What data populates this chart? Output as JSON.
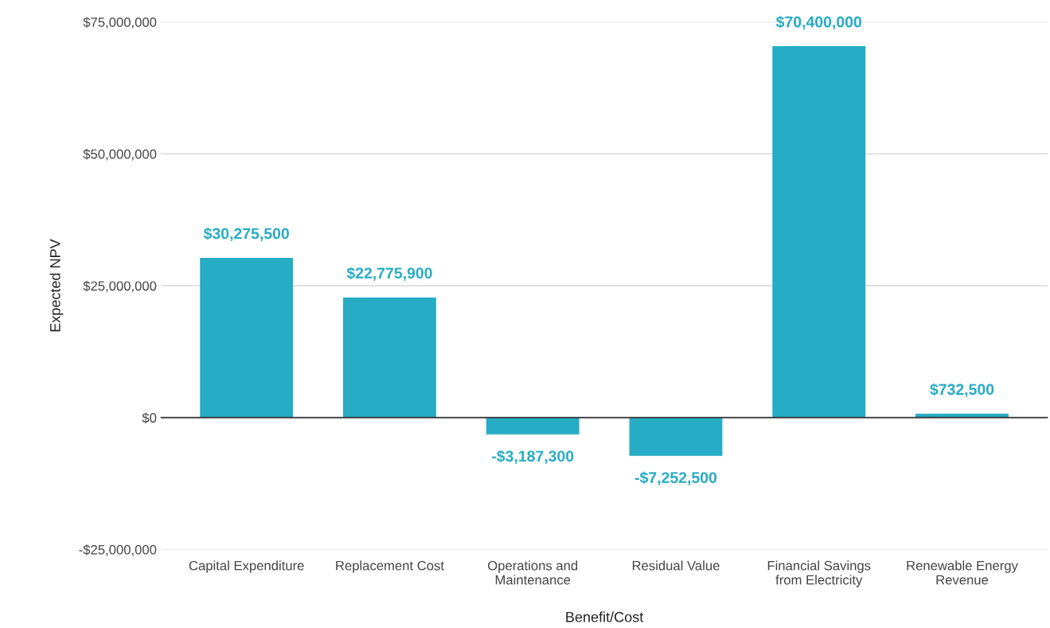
{
  "chart_data": {
    "type": "bar",
    "xlabel": "Benefit/Cost",
    "ylabel": "Expected NPV",
    "categories": [
      "Capital Expenditure",
      "Replacement Cost",
      "Operations and Maintenance",
      "Residual Value",
      "Financial Savings from Electricity",
      "Renewable Energy Revenue"
    ],
    "values": [
      30275500,
      22775900,
      -3187300,
      -7252500,
      70400000,
      732500
    ],
    "value_labels": [
      "$30,275,500",
      "$22,775,900",
      "-$3,187,300",
      "-$7,252,500",
      "$70,400,000",
      "$732,500"
    ],
    "color": "#26acc4",
    "ylim": [
      -25000000,
      75000000
    ],
    "yticks": [
      {
        "value": -25000000,
        "label": "-$25,000,000"
      },
      {
        "value": 0,
        "label": "$0"
      },
      {
        "value": 25000000,
        "label": "$25,000,000"
      },
      {
        "value": 50000000,
        "label": "$50,000,000"
      },
      {
        "value": 75000000,
        "label": "$75,000,000"
      }
    ],
    "grid": "y"
  }
}
